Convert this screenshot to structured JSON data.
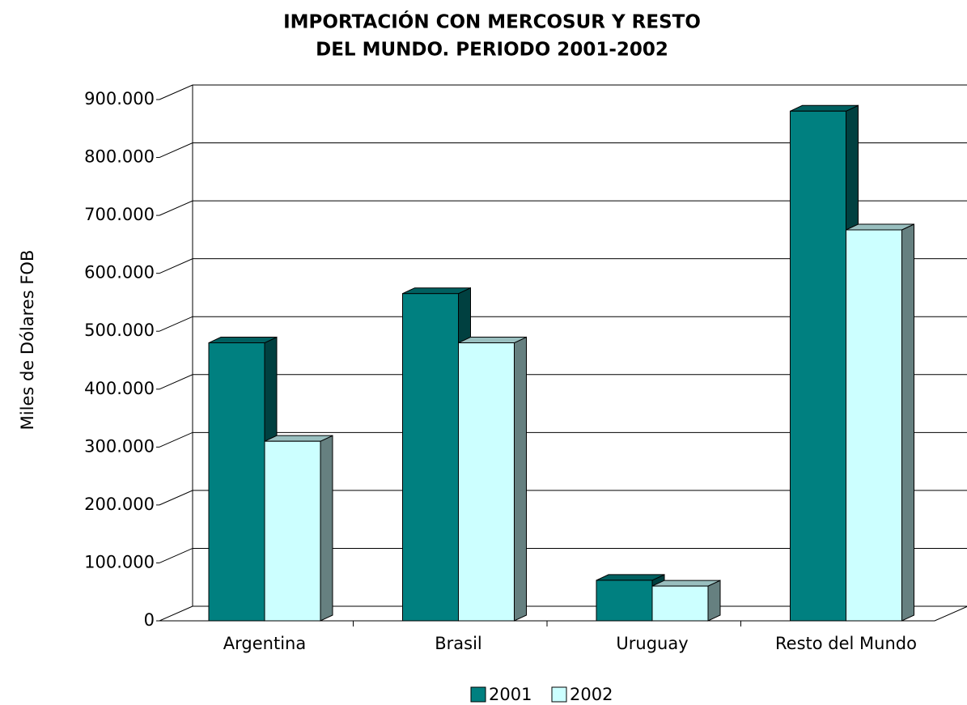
{
  "chart_data": {
    "type": "bar3d",
    "title": [
      "IMPORTACIÓN CON MERCOSUR Y RESTO",
      "DEL MUNDO. PERIODO 2001-2002"
    ],
    "y_label": "Miles de Dólares FOB",
    "categories": [
      "Argentina",
      "Brasil",
      "Uruguay",
      "Resto del Mundo"
    ],
    "series": [
      {
        "name": "2001",
        "color": "#008080",
        "values": [
          480000,
          565000,
          70000,
          880000
        ]
      },
      {
        "name": "2002",
        "color": "#ccffff",
        "values": [
          310000,
          480000,
          60000,
          675000
        ]
      }
    ],
    "ylim": [
      0,
      900000
    ],
    "yticks": [
      0,
      {
        "value": 100000,
        "label": "100.000"
      },
      {
        "value": 200000,
        "label": "200.000"
      },
      {
        "value": 300000,
        "label": "300.000"
      },
      {
        "value": 400000,
        "label": "400.000"
      },
      {
        "value": 500000,
        "label": "500.000"
      },
      {
        "value": 600000,
        "label": "600.000"
      },
      {
        "value": 700000,
        "label": "700.000"
      },
      {
        "value": 800000,
        "label": "800.000"
      },
      {
        "value": 900000,
        "label": "900.000"
      }
    ],
    "grid": true
  }
}
